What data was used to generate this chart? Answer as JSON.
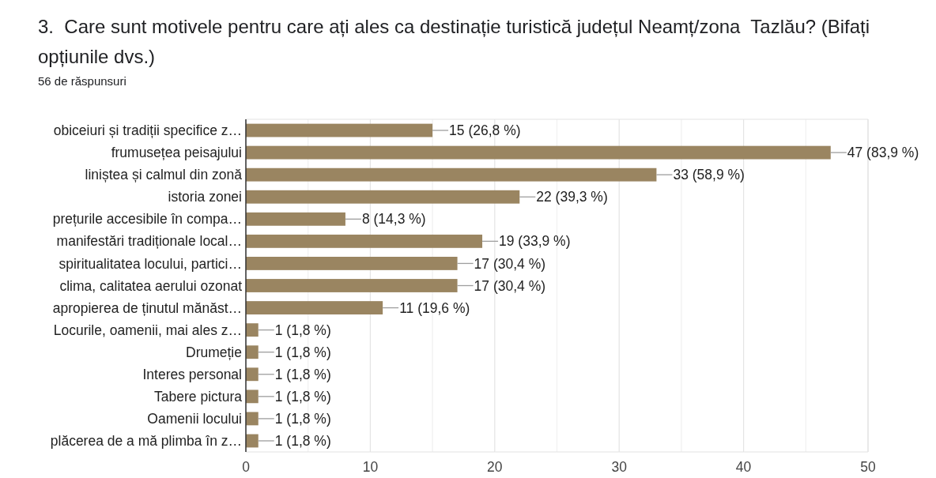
{
  "chart_data": {
    "type": "bar",
    "orientation": "horizontal",
    "title": "3.  Care sunt motivele pentru care ați ales ca destinație turistică județul Neamț/zona  Tazlău? (Bifați opțiunile dvs.)",
    "subtitle": "56 de răspunsuri",
    "categories": [
      "obiceiuri și tradiții specifice z…",
      "frumusețea peisajului",
      "liniștea și calmul din zonă",
      "istoria zonei",
      "prețurile accesibile în compa…",
      "manifestări tradiționale local…",
      "spiritualitatea locului, partici…",
      "clima, calitatea aerului ozonat",
      "apropierea de ținutul mănăst…",
      "Locurile, oamenii, mai ales z…",
      "Drumeție",
      "Interes personal",
      "Tabere pictura",
      "Oamenii locului",
      "plăcerea de a mă plimba în z…"
    ],
    "values": [
      15,
      47,
      33,
      22,
      8,
      19,
      17,
      17,
      11,
      1,
      1,
      1,
      1,
      1,
      1
    ],
    "value_labels": [
      "15 (26,8 %)",
      "47 (83,9 %)",
      "33 (58,9 %)",
      "22 (39,3 %)",
      "8 (14,3 %)",
      "19 (33,9 %)",
      "17 (30,4 %)",
      "17 (30,4 %)",
      "11 (19,6 %)",
      "1 (1,8 %)",
      "1 (1,8 %)",
      "1 (1,8 %)",
      "1 (1,8 %)",
      "1 (1,8 %)",
      "1 (1,8 %)"
    ],
    "color": "#9a8561",
    "xlim": [
      0,
      50
    ],
    "xticks": [
      0,
      {
        "value": 5,
        "label": null
      },
      10,
      {
        "value": 15,
        "label": null
      },
      20,
      {
        "value": 25,
        "label": null
      },
      30,
      {
        "value": 35,
        "label": null
      },
      40,
      {
        "value": 45,
        "label": null
      },
      50
    ],
    "grid": "x"
  }
}
